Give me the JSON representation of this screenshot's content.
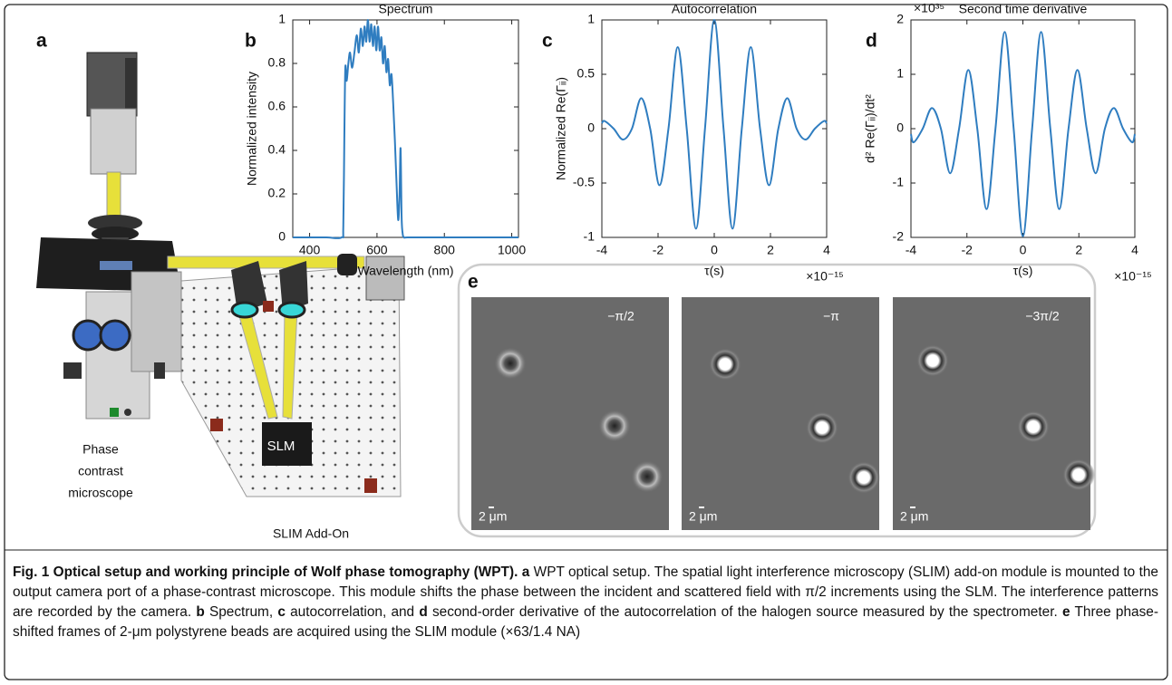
{
  "chart_data": [
    {
      "type": "line",
      "title": "Spectrum",
      "xlabel": "Wavelength (nm)",
      "ylabel": "Normalized intensity",
      "color": "#2f7dc0",
      "xlim": [
        350,
        1020
      ],
      "ylim": [
        0,
        1
      ],
      "xticks": [
        400,
        600,
        800,
        1000
      ],
      "yticks": [
        0,
        0.2,
        0.4,
        0.6,
        0.8,
        1
      ],
      "x": [
        350,
        400,
        450,
        495,
        500,
        503,
        506,
        510,
        515,
        520,
        526,
        533,
        540,
        546,
        552,
        558,
        563,
        568,
        573,
        578,
        583,
        588,
        593,
        598,
        603,
        608,
        613,
        618,
        623,
        628,
        633,
        638,
        643,
        648,
        653,
        658,
        663,
        667,
        670,
        673,
        676,
        680,
        690,
        750,
        850,
        950,
        1020
      ],
      "values": [
        0,
        0,
        0,
        0,
        0.05,
        0.45,
        0.78,
        0.72,
        0.8,
        0.85,
        0.78,
        0.85,
        0.93,
        0.85,
        0.96,
        0.88,
        0.97,
        0.9,
        1.0,
        0.9,
        0.98,
        0.88,
        0.97,
        0.86,
        0.97,
        0.86,
        0.92,
        0.8,
        0.88,
        0.76,
        0.82,
        0.7,
        0.75,
        0.62,
        0.45,
        0.25,
        0.08,
        0.2,
        0.41,
        0.1,
        0.02,
        0,
        0,
        0,
        0,
        0,
        0
      ]
    },
    {
      "type": "line",
      "title": "Autocorrelation",
      "xlabel": "τ(s)",
      "x_multiplier": "×10⁻¹⁵",
      "ylabel": "Normalized Re(Γᵢᵢ)",
      "color": "#2f7dc0",
      "xlim": [
        -4,
        4
      ],
      "ylim": [
        -1,
        1
      ],
      "xticks": [
        -4,
        -2,
        0,
        2,
        4
      ],
      "yticks": [
        -1,
        -0.5,
        0,
        0.5,
        1
      ],
      "x": [
        -4,
        -3.9,
        -3.58,
        -3.25,
        -2.93,
        -2.6,
        -2.28,
        -1.95,
        -1.63,
        -1.3,
        -0.98,
        -0.65,
        -0.33,
        0,
        0.33,
        0.65,
        0.98,
        1.3,
        1.63,
        1.95,
        2.28,
        2.6,
        2.93,
        3.25,
        3.58,
        3.9,
        4
      ],
      "values": [
        0.05,
        0.07,
        0,
        -0.1,
        0,
        0.28,
        0,
        -0.52,
        0,
        0.75,
        0,
        -0.92,
        0,
        1,
        0,
        -0.92,
        0,
        0.75,
        0,
        -0.52,
        0,
        0.28,
        0,
        -0.1,
        0,
        0.07,
        0.05
      ]
    },
    {
      "type": "line",
      "title": "Second time derivative",
      "y_multiplier": "×10³⁵",
      "xlabel": "τ(s)",
      "x_multiplier": "×10⁻¹⁵",
      "ylabel": "d² Re(Γᵢᵢ)/dt²",
      "color": "#2f7dc0",
      "xlim": [
        -4,
        4
      ],
      "ylim": [
        -2,
        2
      ],
      "xticks": [
        -4,
        -2,
        0,
        2,
        4
      ],
      "yticks": [
        -2,
        -1,
        0,
        1,
        2
      ],
      "x": [
        -4,
        -3.9,
        -3.58,
        -3.25,
        -2.93,
        -2.6,
        -2.28,
        -1.95,
        -1.63,
        -1.3,
        -0.98,
        -0.65,
        -0.33,
        0,
        0.33,
        0.65,
        0.98,
        1.3,
        1.63,
        1.95,
        2.28,
        2.6,
        2.93,
        3.25,
        3.58,
        3.9,
        4
      ],
      "values": [
        -0.1,
        -0.25,
        0,
        0.38,
        0,
        -0.82,
        0,
        1.08,
        0,
        -1.48,
        0,
        1.78,
        0,
        -1.98,
        0,
        1.78,
        0,
        -1.48,
        0,
        1.08,
        0,
        -0.82,
        0,
        0.38,
        0,
        -0.25,
        -0.1
      ]
    }
  ],
  "panel_labels": [
    "a",
    "b",
    "c",
    "d",
    "e"
  ],
  "illustration": {
    "microscope_label": [
      "Phase",
      "contrast",
      "microscope"
    ],
    "slm_label": "SLM",
    "addon_label": "SLIM Add-On"
  },
  "frames": [
    {
      "phase": "−π/2",
      "scale": "2 μm"
    },
    {
      "phase": "−π",
      "scale": "2 μm"
    },
    {
      "phase": "−3π/2",
      "scale": "2 μm"
    }
  ],
  "caption": [
    {
      "text": "Fig. 1 Optical setup and working principle of Wolf phase tomography (WPT). a",
      "bold": true
    },
    {
      "text": " WPT optical setup. The spatial light interference microscopy (SLIM) add-on module is mounted to the output camera port of a phase-contrast microscope. This module shifts the phase between the incident and scattered field with π/2 increments using the SLM. The interference patterns are recorded by the camera. ",
      "bold": false
    },
    {
      "text": "b",
      "bold": true
    },
    {
      "text": " Spectrum, ",
      "bold": false
    },
    {
      "text": "c",
      "bold": true
    },
    {
      "text": " autocorrelation, and ",
      "bold": false
    },
    {
      "text": "d",
      "bold": true
    },
    {
      "text": " second-order derivative of the autocorrelation of the halogen source measured by the spectrometer. ",
      "bold": false
    },
    {
      "text": "e",
      "bold": true
    },
    {
      "text": " Three phase-shifted frames of 2-μm polystyrene beads are acquired using the SLIM module (×63/1.4 NA)",
      "bold": false
    }
  ]
}
